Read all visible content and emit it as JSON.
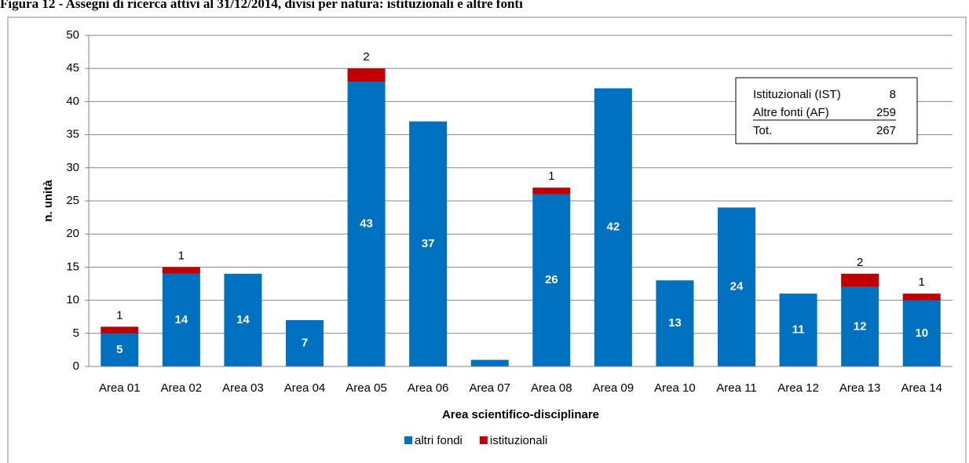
{
  "chart_data": {
    "type": "stacked_bar",
    "title": "Figura 12 - Assegni di ricerca attivi al 31/12/2014, divisi per natura: istituzionali e altre fonti",
    "x_label": "Area scientifico-disciplinare",
    "y_label": "n. unità",
    "categories": [
      "Area 01",
      "Area 02",
      "Area 03",
      "Area 04",
      "Area 05",
      "Area 06",
      "Area 07",
      "Area 08",
      "Area 09",
      "Area 10",
      "Area 11",
      "Area 12",
      "Area 13",
      "Area 14"
    ],
    "series": [
      {
        "name": "altri fondi",
        "color": "#0070c0",
        "values": [
          5,
          14,
          14,
          7,
          43,
          37,
          1,
          26,
          42,
          13,
          24,
          11,
          12,
          10
        ]
      },
      {
        "name": "istituzionali",
        "color": "#c00000",
        "values": [
          1,
          1,
          0,
          0,
          2,
          0,
          0,
          1,
          0,
          0,
          0,
          0,
          2,
          1
        ]
      }
    ],
    "ylim": [
      0,
      50
    ],
    "yticks": [
      0,
      5,
      10,
      15,
      20,
      25,
      30,
      35,
      40,
      45,
      50
    ],
    "grid": true,
    "legend": "bottom",
    "annotation_box": {
      "rows": [
        {
          "label": "Istituzionali (IST)",
          "value": 8
        },
        {
          "label": "Altre fonti (AF)",
          "value": 259
        },
        {
          "label": "Tot.",
          "value": 267
        }
      ]
    }
  }
}
